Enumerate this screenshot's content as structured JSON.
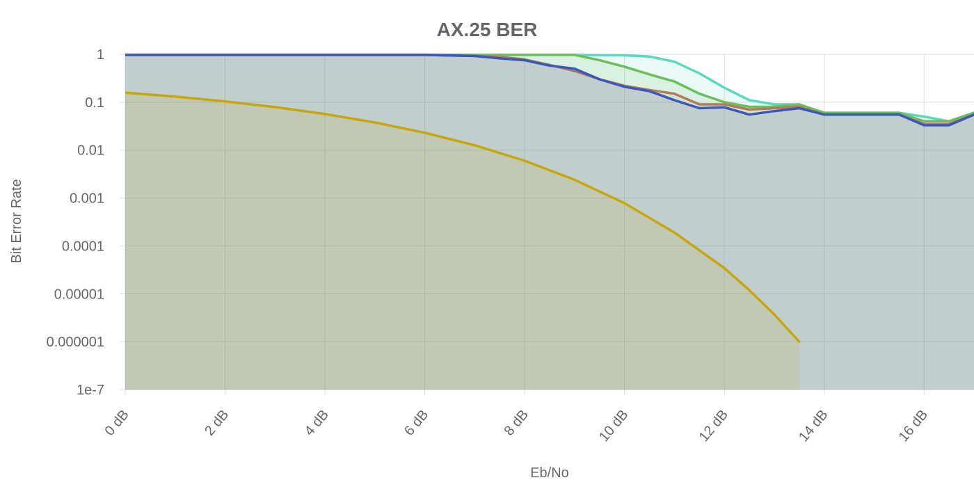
{
  "chart_data": {
    "type": "area",
    "title": "AX.25 BER",
    "xlabel": "Eb/No",
    "ylabel": "Bit Error Rate",
    "xlim": [
      0,
      17
    ],
    "ylim": [
      1e-07,
      1
    ],
    "y_scale": "log",
    "grid": true,
    "x_ticks": [
      0,
      2,
      4,
      6,
      8,
      10,
      12,
      14,
      16
    ],
    "x_tick_labels": [
      "0 dB",
      "2 dB",
      "4 dB",
      "6 dB",
      "8 dB",
      "10 dB",
      "12 dB",
      "14 dB",
      "16 dB"
    ],
    "y_ticks": [
      1,
      0.1,
      0.01,
      0.001,
      0.0001,
      1e-05,
      1e-06,
      1e-07
    ],
    "y_tick_labels": [
      "1",
      "0.1",
      "0.01",
      "0.001",
      "0.0001",
      "0.00001",
      "0.000001",
      "1e-7"
    ],
    "series": [
      {
        "color": "#5dd8c0",
        "x": [
          0,
          1,
          2,
          3,
          4,
          5,
          6,
          7,
          8,
          9,
          9.5,
          10,
          10.5,
          11,
          11.5,
          12,
          12.5,
          13,
          13.5,
          14,
          14.5,
          15,
          15.5,
          16,
          16.5,
          17
        ],
        "y": [
          0.97,
          0.97,
          0.97,
          0.97,
          0.97,
          0.97,
          0.97,
          0.97,
          0.97,
          0.97,
          0.96,
          0.95,
          0.9,
          0.7,
          0.4,
          0.2,
          0.11,
          0.09,
          0.09,
          0.06,
          0.06,
          0.06,
          0.06,
          0.05,
          0.04,
          0.06
        ]
      },
      {
        "color": "#6cbd5c",
        "x": [
          0,
          1,
          2,
          3,
          4,
          5,
          6,
          7,
          8,
          9,
          9.5,
          10,
          10.5,
          11,
          11.5,
          12,
          12.5,
          13,
          13.5,
          14,
          14.5,
          15,
          15.5,
          16,
          16.5,
          17
        ],
        "y": [
          0.97,
          0.97,
          0.97,
          0.97,
          0.97,
          0.97,
          0.97,
          0.97,
          0.97,
          0.97,
          0.75,
          0.55,
          0.38,
          0.27,
          0.15,
          0.1,
          0.08,
          0.08,
          0.09,
          0.06,
          0.06,
          0.06,
          0.06,
          0.04,
          0.04,
          0.06
        ]
      },
      {
        "color": "#b37a5c",
        "x": [
          0,
          1,
          2,
          3,
          4,
          5,
          6,
          7,
          7.5,
          8,
          8.5,
          9,
          9.5,
          10,
          10.5,
          11,
          11.5,
          12,
          12.5,
          13,
          13.5,
          14,
          14.5,
          15,
          15.5,
          16,
          16.5,
          17
        ],
        "y": [
          0.97,
          0.97,
          0.97,
          0.97,
          0.97,
          0.97,
          0.97,
          0.93,
          0.88,
          0.78,
          0.6,
          0.45,
          0.3,
          0.22,
          0.18,
          0.15,
          0.09,
          0.09,
          0.07,
          0.075,
          0.08,
          0.055,
          0.055,
          0.055,
          0.055,
          0.035,
          0.035,
          0.055
        ]
      },
      {
        "color": "#3c57b8",
        "x": [
          0,
          1,
          2,
          3,
          4,
          5,
          6,
          7,
          7.5,
          8,
          8.5,
          9,
          9.5,
          10,
          10.5,
          11,
          11.5,
          12,
          12.5,
          13,
          13.5,
          14,
          14.5,
          15,
          15.5,
          16,
          16.5,
          17
        ],
        "y": [
          0.97,
          0.97,
          0.97,
          0.97,
          0.97,
          0.97,
          0.97,
          0.92,
          0.82,
          0.75,
          0.58,
          0.5,
          0.3,
          0.21,
          0.17,
          0.11,
          0.075,
          0.078,
          0.055,
          0.065,
          0.075,
          0.055,
          0.055,
          0.055,
          0.055,
          0.033,
          0.033,
          0.055
        ]
      },
      {
        "color": "#c6a60a",
        "x": [
          0,
          1,
          2,
          3,
          4,
          5,
          6,
          7,
          8,
          9,
          10,
          11,
          12,
          12.5,
          13,
          13.5
        ],
        "y": [
          0.158,
          0.131,
          0.104,
          0.079,
          0.0565,
          0.0377,
          0.023,
          0.0126,
          0.006,
          0.0024,
          0.00078,
          0.00019,
          3.43e-05,
          1.19e-05,
          3.7e-06,
          1e-06
        ]
      }
    ]
  }
}
